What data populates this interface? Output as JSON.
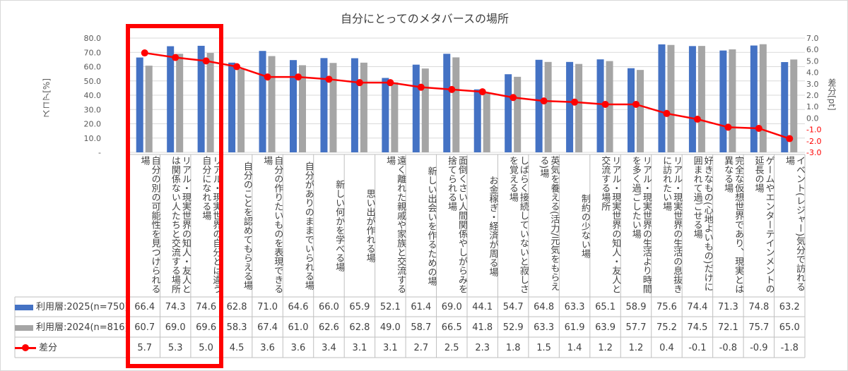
{
  "chart_data": {
    "type": "bar+line",
    "title": "自分にとってのメタバースの場所",
    "ylabel_left": "スコア[%]",
    "ylabel_right": "差分[pt]",
    "ylim_left": [
      0,
      80
    ],
    "ylim_right": [
      -3,
      7
    ],
    "left_ticks": [
      "-",
      "10.0",
      "20.0",
      "30.0",
      "40.0",
      "50.0",
      "60.0",
      "70.0",
      "80.0"
    ],
    "right_ticks": [
      "-3.0",
      "-2.0",
      "-1.0",
      "0.0",
      "1.0",
      "2.0",
      "3.0",
      "4.0",
      "5.0",
      "6.0",
      "7.0"
    ],
    "grid": true,
    "legend_placement": "data-table",
    "categories": [
      "自分の別の可能性を見つけられる場",
      "リアル・現実世界の知人・友人とは関係ない人たちと交流する場所",
      "リアル・現実世界の自分とは違う自分になれる場",
      "自分のことを認めてもらえる場",
      "自分の作りたいものを表現できる場",
      "自分がありのままでいられる場",
      "新しい何かを学べる場",
      "思い出が作れる場",
      "遠く離れた親戚や家族と交流する場",
      "新しい出会いを作るための場",
      "面倒くさい人間関係やしがらみを捨てられる場",
      "お金稼ぎ・経済が周る場",
      "しばらく接続していないと寂しさを覚える場",
      "英気を養える(活力/元気をもらえる)場",
      "制約の少ない場",
      "リアル・現実世界の知人・友人と交流する場所",
      "リアル・現実世界の生活より時間を多く過ごしたい場",
      "リアル・現実世界の生活の息抜きに訪れたい場",
      "好きなもの(心地よいもの)だけに囲まれて過ごせる場",
      "完全な仮想世界であり、現実とは異なる場",
      "ゲームやエンターテインメントの延長の場",
      "イベント(レジャー)気分で訪れる場"
    ],
    "series": [
      {
        "name": "利用層:2025(n=750)",
        "type": "bar",
        "axis": "left",
        "color": "#4472c4",
        "values": [
          66.4,
          74.3,
          74.6,
          62.8,
          71.0,
          64.6,
          66.0,
          65.9,
          52.1,
          61.4,
          69.0,
          44.1,
          54.7,
          64.8,
          63.3,
          65.1,
          58.9,
          75.6,
          74.4,
          71.3,
          74.8,
          63.2
        ],
        "labels": [
          "66.4",
          "74.3",
          "74.6",
          "62.8",
          "71.0",
          "64.6",
          "66.0",
          "65.9",
          "52.1",
          "61.4",
          "69.0",
          "44.1",
          "54.7",
          "64.8",
          "63.3",
          "65.1",
          "58.9",
          "75.6",
          "74.4",
          "71.3",
          "74.8",
          "63.2"
        ]
      },
      {
        "name": "利用層:2024(n=816)",
        "type": "bar",
        "axis": "left",
        "color": "#a5a5a5",
        "values": [
          60.7,
          69.0,
          69.6,
          58.3,
          67.4,
          61.0,
          62.6,
          62.8,
          49.0,
          58.7,
          66.5,
          41.8,
          52.9,
          63.3,
          61.9,
          63.9,
          57.7,
          75.2,
          74.5,
          72.1,
          75.7,
          65.0
        ],
        "labels": [
          "60.7",
          "69.0",
          "69.6",
          "58.3",
          "67.4",
          "61.0",
          "62.6",
          "62.8",
          "49.0",
          "58.7",
          "66.5",
          "41.8",
          "52.9",
          "63.3",
          "61.9",
          "63.9",
          "57.7",
          "75.2",
          "74.5",
          "72.1",
          "75.7",
          "65.0"
        ]
      },
      {
        "name": "差分",
        "type": "line",
        "axis": "right",
        "color": "#ff0000",
        "values": [
          5.7,
          5.3,
          5.0,
          4.5,
          3.6,
          3.6,
          3.4,
          3.1,
          3.1,
          2.7,
          2.5,
          2.3,
          1.8,
          1.5,
          1.4,
          1.2,
          1.2,
          0.4,
          -0.1,
          -0.8,
          -0.9,
          -1.8
        ],
        "labels": [
          "5.7",
          "5.3",
          "5.0",
          "4.5",
          "3.6",
          "3.6",
          "3.4",
          "3.1",
          "3.1",
          "2.7",
          "2.5",
          "2.3",
          "1.8",
          "1.5",
          "1.4",
          "1.2",
          "1.2",
          "0.4",
          "-0.1",
          "-0.8",
          "-0.9",
          "-1.8"
        ]
      }
    ],
    "highlight_color": "#ff0000",
    "negative_tick_color": "#ff0000"
  }
}
